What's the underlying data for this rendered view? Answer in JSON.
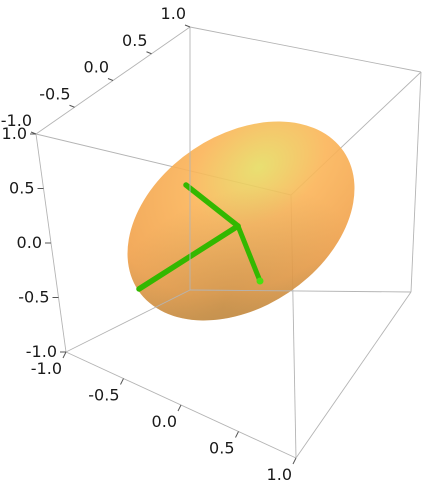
{
  "chart_data": {
    "type": "3d-ellipsoid",
    "title": "",
    "axes": {
      "x": {
        "range": [
          -1.0,
          1.0
        ],
        "ticks": [
          "-1.0",
          "-0.5",
          "0.0",
          "0.5",
          "1.0"
        ]
      },
      "y": {
        "range": [
          -1.0,
          1.0
        ],
        "ticks": [
          "-1.0",
          "-0.5",
          "0.0",
          "0.5",
          "1.0"
        ]
      },
      "z": {
        "range": [
          -1.0,
          1.0
        ],
        "ticks": [
          "-1.0",
          "-0.5",
          "0.0",
          "0.5",
          "1.0"
        ]
      }
    },
    "box": true,
    "grid": false,
    "colors": {
      "surface_light": "#ffc266",
      "surface_mid": "#f5a64a",
      "surface_dark": "#c8873a",
      "highlight": "#e8d860",
      "axis_vectors": "#33b800",
      "box_edges": "#b4b4b4"
    }
  }
}
